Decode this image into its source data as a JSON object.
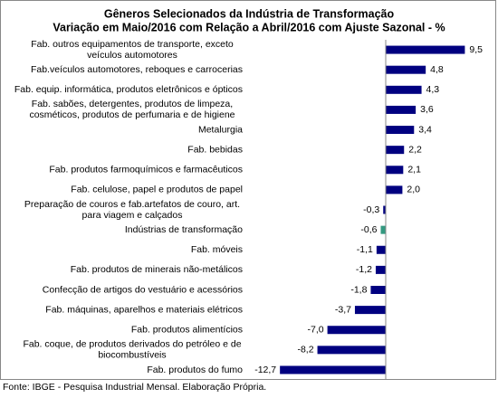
{
  "chart_data": {
    "type": "bar",
    "orientation": "horizontal",
    "title": "Gêneros Selecionados da Indústria de Transformação",
    "subtitle": "Variação em Maio/2016 com Relação a Abril/2016 com Ajuste Sazonal - %",
    "categories": [
      [
        "Fab. outros equipamentos de transporte, exceto",
        "veículos automotores"
      ],
      [
        "Fab.veículos automotores, reboques e carrocerias"
      ],
      [
        "Fab. equip. informática, produtos eletrônicos e ópticos"
      ],
      [
        "Fab. sabões, detergentes, produtos de limpeza,",
        "cosméticos, produtos de perfumaria e de higiene"
      ],
      [
        "Metalurgia"
      ],
      [
        "Fab. bebidas"
      ],
      [
        "Fab. produtos farmoquímicos e farmacêuticos"
      ],
      [
        "Fab. celulose, papel e produtos de papel"
      ],
      [
        "Preparação de couros e fab.artefatos de couro, art.",
        "para viagem e calçados"
      ],
      [
        "Indústrias de transformação"
      ],
      [
        "Fab. móveis"
      ],
      [
        "Fab. produtos de minerais não-metálicos"
      ],
      [
        "Confecção de artigos do vestuário e acessórios"
      ],
      [
        "Fab. máquinas, aparelhos e materiais elétricos"
      ],
      [
        "Fab. produtos alimentícios"
      ],
      [
        "Fab. coque, de produtos derivados do petróleo e de",
        "biocombustíveis"
      ],
      [
        "Fab. produtos do fumo"
      ]
    ],
    "values": [
      9.5,
      4.8,
      4.3,
      3.6,
      3.4,
      2.2,
      2.1,
      2.0,
      -0.3,
      -0.6,
      -1.1,
      -1.2,
      -1.8,
      -3.7,
      -7.0,
      -8.2,
      -12.7
    ],
    "value_labels": [
      "9,5",
      "4,8",
      "4,3",
      "3,6",
      "3,4",
      "2,2",
      "2,1",
      "2,0",
      "-0,3",
      "-0,6",
      "-1,1",
      "-1,2",
      "-1,8",
      "-3,7",
      "-7,0",
      "-8,2",
      "-12,7"
    ],
    "colors": [
      "#000080",
      "#000080",
      "#000080",
      "#000080",
      "#000080",
      "#000080",
      "#000080",
      "#000080",
      "#000080",
      "#339980",
      "#000080",
      "#000080",
      "#000080",
      "#000080",
      "#000080",
      "#000080",
      "#000080"
    ],
    "source": "Fonte: IBGE - Pesquisa Industrial Mensal. Elaboração Própria."
  }
}
